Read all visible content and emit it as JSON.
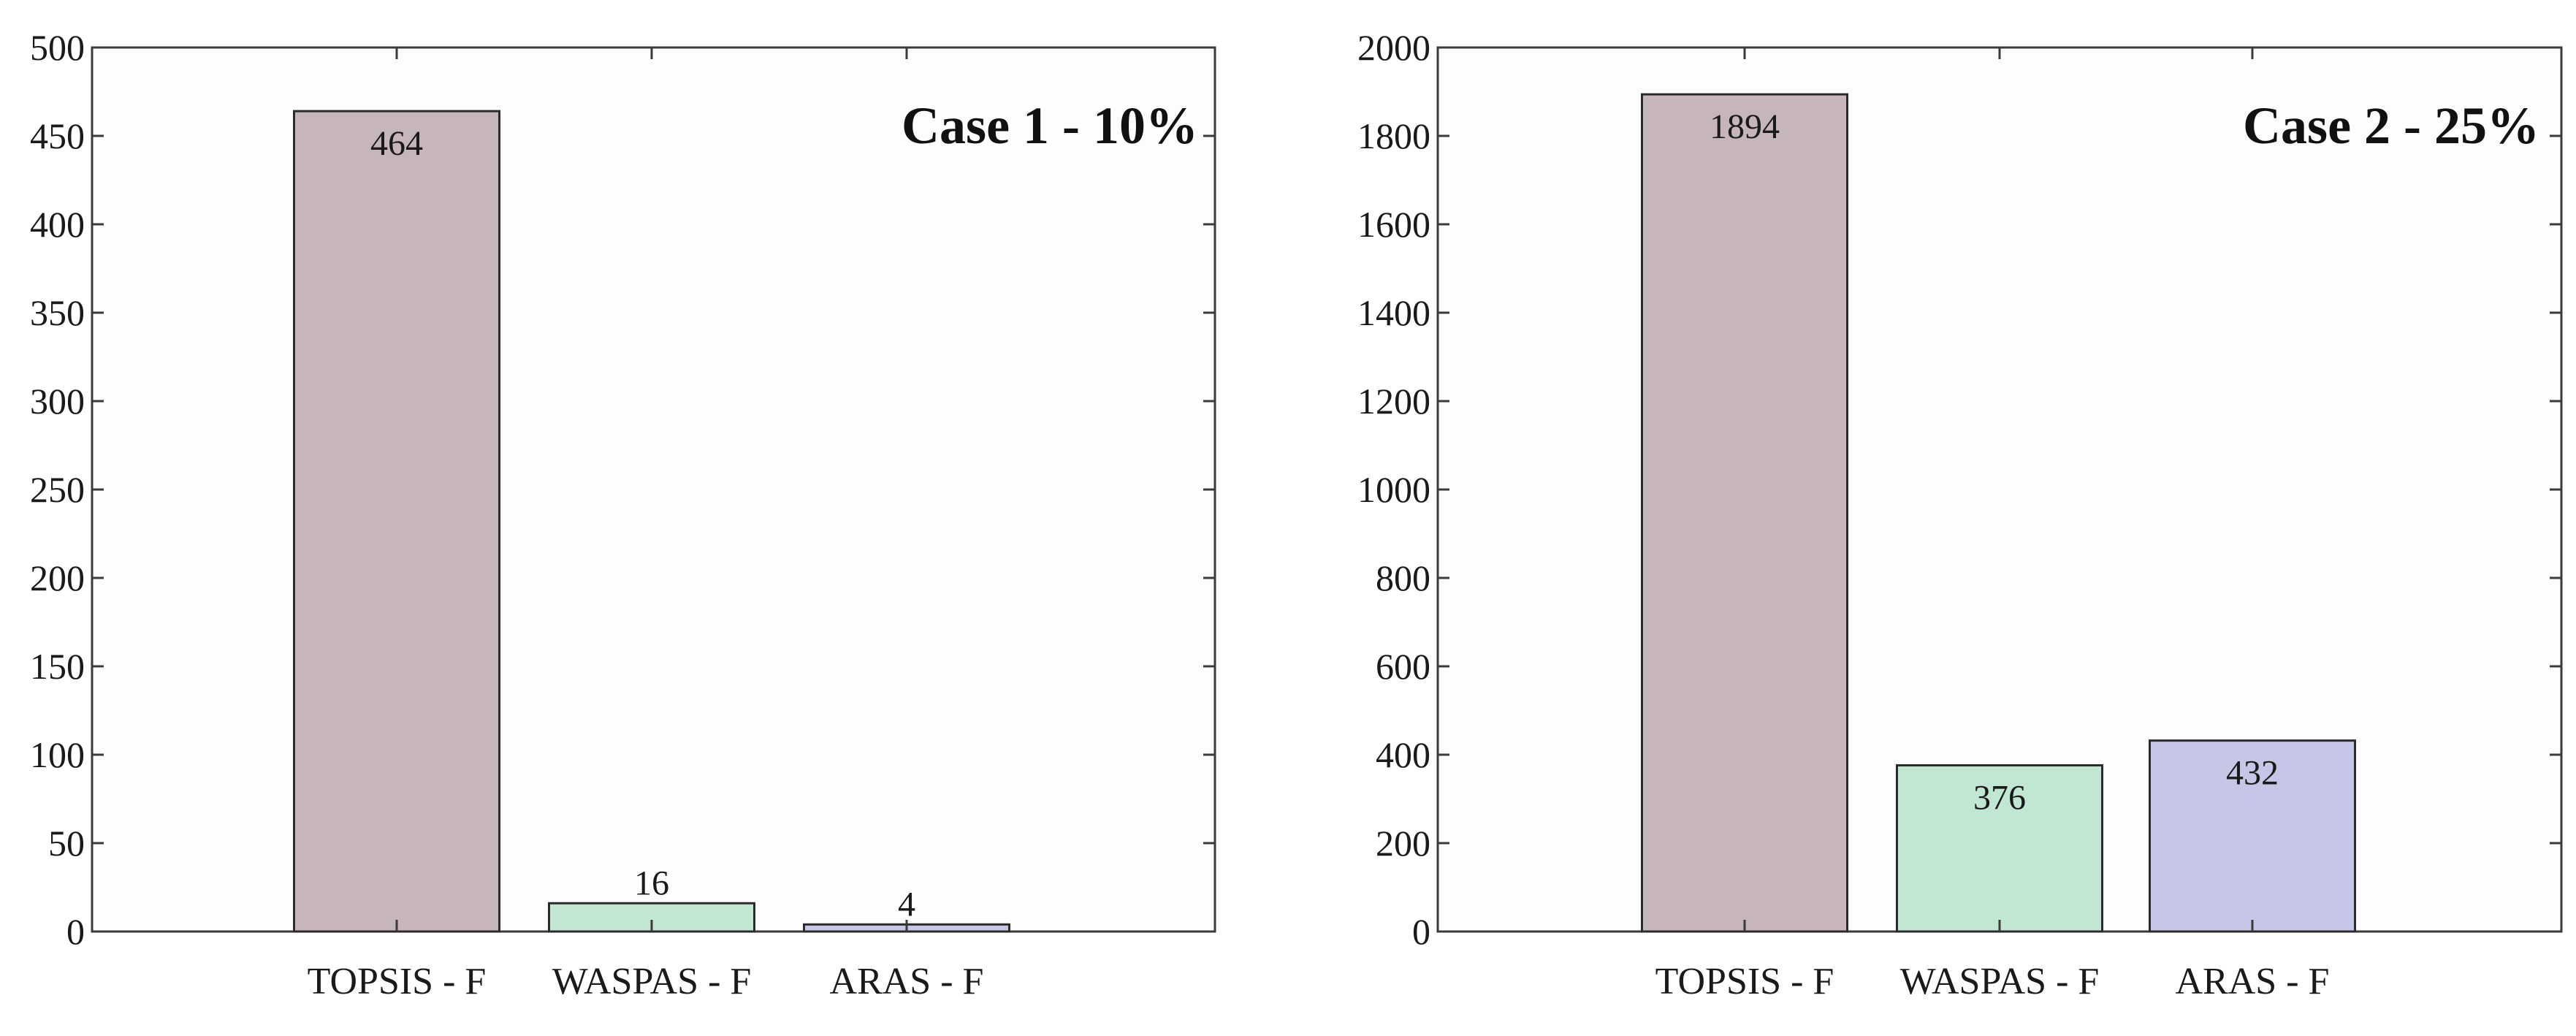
{
  "chart_data": [
    {
      "type": "bar",
      "title": "Case 1 - 10%",
      "categories": [
        "TOPSIS - F",
        "WASPAS - F",
        "ARAS - F"
      ],
      "values": [
        464,
        16,
        4
      ],
      "data_labels": [
        "464",
        "16",
        "4"
      ],
      "ylim": [
        0,
        500
      ],
      "yticks": [
        0,
        50,
        100,
        150,
        200,
        250,
        300,
        350,
        400,
        450,
        500
      ],
      "colors": [
        "#c6b5ba",
        "#c1e6d2",
        "#c6c6e6"
      ],
      "grid": false,
      "legend": "none"
    },
    {
      "type": "bar",
      "title": "Case 2 - 25%",
      "categories": [
        "TOPSIS - F",
        "WASPAS - F",
        "ARAS - F"
      ],
      "values": [
        1894,
        376,
        432
      ],
      "data_labels": [
        "1894",
        "376",
        "432"
      ],
      "ylim": [
        0,
        2000
      ],
      "yticks": [
        0,
        200,
        400,
        600,
        800,
        1000,
        1200,
        1400,
        1600,
        1800,
        2000
      ],
      "colors": [
        "#c6b5ba",
        "#c1e6d2",
        "#c6c6e6"
      ],
      "grid": false,
      "legend": "none"
    }
  ]
}
